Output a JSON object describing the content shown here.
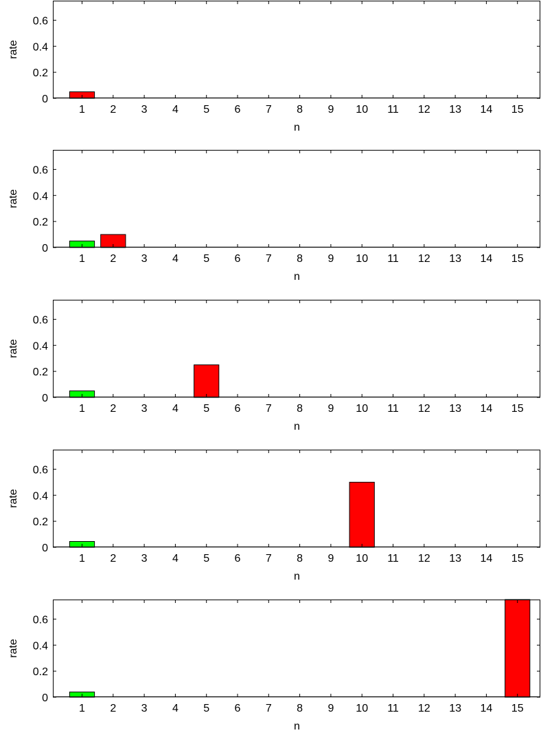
{
  "figure": {
    "panel_count": 5
  },
  "chart_data": [
    {
      "type": "bar",
      "xlabel": "n",
      "ylabel": "rate",
      "categories": [
        "1",
        "2",
        "3",
        "4",
        "5",
        "6",
        "7",
        "8",
        "9",
        "10",
        "11",
        "12",
        "13",
        "14",
        "15"
      ],
      "ylim": [
        0,
        0.75
      ],
      "yticks": [
        "0",
        "0.2",
        "0.4",
        "0.6"
      ],
      "grid": false,
      "series": [
        {
          "color": "#00ff00",
          "values": [
            0,
            0,
            0,
            0,
            0,
            0,
            0,
            0,
            0,
            0,
            0,
            0,
            0,
            0,
            0
          ]
        },
        {
          "color": "#ff0000",
          "values": [
            0.05,
            0,
            0,
            0,
            0,
            0,
            0,
            0,
            0,
            0,
            0,
            0,
            0,
            0,
            0
          ]
        }
      ]
    },
    {
      "type": "bar",
      "xlabel": "n",
      "ylabel": "rate",
      "categories": [
        "1",
        "2",
        "3",
        "4",
        "5",
        "6",
        "7",
        "8",
        "9",
        "10",
        "11",
        "12",
        "13",
        "14",
        "15"
      ],
      "ylim": [
        0,
        0.75
      ],
      "yticks": [
        "0",
        "0.2",
        "0.4",
        "0.6"
      ],
      "grid": false,
      "series": [
        {
          "color": "#00ff00",
          "values": [
            0.05,
            0,
            0,
            0,
            0,
            0,
            0,
            0,
            0,
            0,
            0,
            0,
            0,
            0,
            0
          ]
        },
        {
          "color": "#ff0000",
          "values": [
            0,
            0.1,
            0,
            0,
            0,
            0,
            0,
            0,
            0,
            0,
            0,
            0,
            0,
            0,
            0
          ]
        }
      ]
    },
    {
      "type": "bar",
      "xlabel": "n",
      "ylabel": "rate",
      "categories": [
        "1",
        "2",
        "3",
        "4",
        "5",
        "6",
        "7",
        "8",
        "9",
        "10",
        "11",
        "12",
        "13",
        "14",
        "15"
      ],
      "ylim": [
        0,
        0.75
      ],
      "yticks": [
        "0",
        "0.2",
        "0.4",
        "0.6"
      ],
      "grid": false,
      "series": [
        {
          "color": "#00ff00",
          "values": [
            0.05,
            0,
            0,
            0,
            0,
            0,
            0,
            0,
            0,
            0,
            0,
            0,
            0,
            0,
            0
          ]
        },
        {
          "color": "#ff0000",
          "values": [
            0,
            0,
            0,
            0,
            0.25,
            0,
            0,
            0,
            0,
            0,
            0,
            0,
            0,
            0,
            0
          ]
        }
      ]
    },
    {
      "type": "bar",
      "xlabel": "n",
      "ylabel": "rate",
      "categories": [
        "1",
        "2",
        "3",
        "4",
        "5",
        "6",
        "7",
        "8",
        "9",
        "10",
        "11",
        "12",
        "13",
        "14",
        "15"
      ],
      "ylim": [
        0,
        0.75
      ],
      "yticks": [
        "0",
        "0.2",
        "0.4",
        "0.6"
      ],
      "grid": false,
      "series": [
        {
          "color": "#00ff00",
          "values": [
            0.045,
            0,
            0,
            0,
            0,
            0,
            0,
            0,
            0,
            0,
            0,
            0,
            0,
            0,
            0
          ]
        },
        {
          "color": "#ff0000",
          "values": [
            0,
            0,
            0,
            0,
            0,
            0,
            0,
            0,
            0,
            0.5,
            0,
            0,
            0,
            0,
            0
          ]
        }
      ]
    },
    {
      "type": "bar",
      "xlabel": "n",
      "ylabel": "rate",
      "categories": [
        "1",
        "2",
        "3",
        "4",
        "5",
        "6",
        "7",
        "8",
        "9",
        "10",
        "11",
        "12",
        "13",
        "14",
        "15"
      ],
      "ylim": [
        0,
        0.75
      ],
      "yticks": [
        "0",
        "0.2",
        "0.4",
        "0.6"
      ],
      "grid": false,
      "series": [
        {
          "color": "#00ff00",
          "values": [
            0.04,
            0,
            0,
            0,
            0,
            0,
            0,
            0,
            0,
            0,
            0,
            0,
            0,
            0,
            0
          ]
        },
        {
          "color": "#ff0000",
          "values": [
            0,
            0,
            0,
            0,
            0,
            0,
            0,
            0,
            0,
            0,
            0,
            0,
            0,
            0,
            0.75
          ]
        }
      ]
    }
  ]
}
